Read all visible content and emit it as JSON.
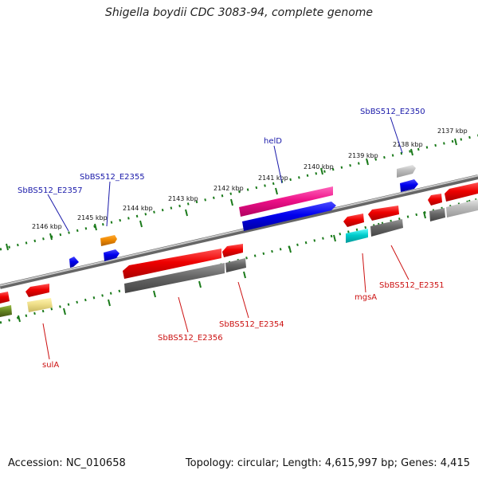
{
  "title": "Shigella boydii CDC 3083-94, complete genome",
  "footer": {
    "accession": "Accession: NC_010658",
    "topology": "Topology: circular; Length: 4,615,997 bp; Genes: 4,415"
  },
  "colors": {
    "ruler": "#1a7a1a",
    "backbone": "#888888",
    "forward_label": "#1a1aaa",
    "reverse_label": "#cc1111"
  },
  "ticks": [
    {
      "label": "2137 kbp"
    },
    {
      "label": "2138 kbp"
    },
    {
      "label": "2139 kbp"
    },
    {
      "label": "2140 kbp"
    },
    {
      "label": "2141 kbp"
    },
    {
      "label": "2142 kbp"
    },
    {
      "label": "2143 kbp"
    },
    {
      "label": "2144 kbp"
    },
    {
      "label": "2145 kbp"
    },
    {
      "label": "2146 kbp"
    }
  ],
  "gene_labels": [
    {
      "text": "SbBS512_E2350",
      "strand": "forward"
    },
    {
      "text": "helD",
      "strand": "forward"
    },
    {
      "text": "SbBS512_E2355",
      "strand": "forward"
    },
    {
      "text": "SbBS512_E2357",
      "strand": "forward"
    },
    {
      "text": "SbBS512_E2351",
      "strand": "reverse"
    },
    {
      "text": "mgsA",
      "strand": "reverse"
    },
    {
      "text": "SbBS512_E2354",
      "strand": "reverse"
    },
    {
      "text": "SbBS512_E2356",
      "strand": "reverse"
    },
    {
      "text": "sulA",
      "strand": "reverse"
    }
  ]
}
